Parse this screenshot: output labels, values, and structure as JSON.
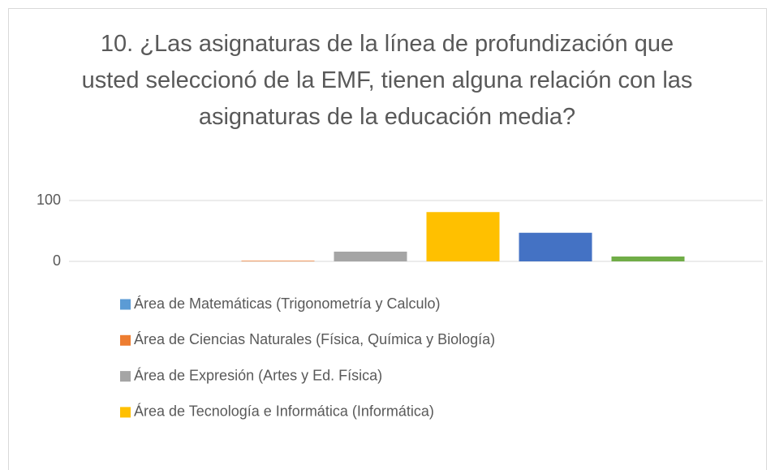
{
  "chart_data": {
    "type": "bar",
    "title": "10. ¿Las asignaturas de la línea de profundización que usted seleccionó de la EMF, tienen alguna relación con las asignaturas de la educación media?",
    "categories": [
      null
    ],
    "series": [
      {
        "name": "Área de Matemáticas (Trigonometría y Calculo)",
        "color": "#5b9bd5",
        "values": [
          0
        ]
      },
      {
        "name": "Área de Ciencias Naturales (Física, Química y Biología)",
        "color": "#ed7d31",
        "values": [
          1
        ]
      },
      {
        "name": "Área de Expresión (Artes y Ed. Física)",
        "color": "#a5a5a5",
        "values": [
          16
        ]
      },
      {
        "name": "Área de Tecnología e Informática (Informática)",
        "color": "#ffc000",
        "values": [
          81
        ]
      },
      {
        "color": "#4472c4",
        "values": [
          47
        ]
      },
      {
        "color": "#70ad47",
        "values": [
          8
        ]
      }
    ],
    "ylim": [
      0,
      100
    ],
    "yticks": [
      0,
      100
    ],
    "grid": true
  }
}
